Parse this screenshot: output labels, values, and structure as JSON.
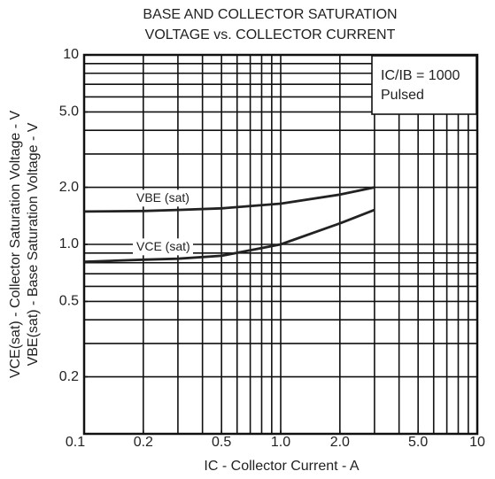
{
  "chart_data": {
    "type": "line",
    "title": [
      "BASE AND COLLECTOR SATURATION",
      "VOLTAGE vs. COLLECTOR CURRENT"
    ],
    "xlabel": "IC - Collector Current - A",
    "ylabel": [
      "VCE(sat) - Collector Saturation Voltage - V",
      "VBE(sat) - Base Saturation Voltage - V"
    ],
    "annotations": [
      "IC/IB = 1000",
      "Pulsed"
    ],
    "xscale": "log",
    "yscale": "log",
    "xlim": [
      0.1,
      10
    ],
    "ylim": [
      0.1,
      10
    ],
    "xticks": [
      0.1,
      0.2,
      0.5,
      {
        "value": 1,
        "label": "1.0"
      },
      {
        "value": 2,
        "label": "2.0"
      },
      {
        "value": 5,
        "label": "5.0"
      },
      10
    ],
    "yticks": [
      0.2,
      0.5,
      {
        "value": 1,
        "label": "1.0"
      },
      {
        "value": 2,
        "label": "2.0"
      },
      {
        "value": 5,
        "label": "5.0"
      },
      10
    ],
    "xgrid": [
      0.1,
      0.2,
      0.3,
      0.4,
      0.5,
      0.6,
      0.7,
      0.8,
      0.9,
      1,
      2,
      3,
      4,
      5,
      6,
      7,
      8,
      9,
      10
    ],
    "ygrid": [
      0.1,
      0.2,
      0.3,
      0.4,
      0.5,
      0.6,
      0.7,
      0.8,
      0.9,
      1,
      2,
      3,
      4,
      5,
      6,
      7,
      8,
      9,
      10
    ],
    "grid": true,
    "x": [
      0.1,
      0.2,
      0.3,
      0.5,
      1,
      2,
      3
    ],
    "series": [
      {
        "name": "VBE (sat)",
        "color": "#222222",
        "values": [
          1.49,
          1.5,
          1.52,
          1.55,
          1.64,
          1.83,
          2.0
        ]
      },
      {
        "name": "VCE (sat)",
        "color": "#222222",
        "values": [
          0.81,
          0.83,
          0.84,
          0.87,
          1.0,
          1.29,
          1.52
        ]
      }
    ]
  }
}
